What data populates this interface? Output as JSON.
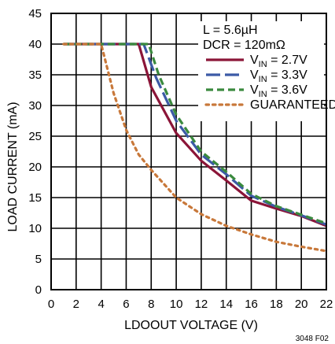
{
  "chart_data": {
    "type": "line",
    "xlabel": "LDOOUT VOLTAGE (V)",
    "ylabel": "LOAD CURRENT (mA)",
    "xlim": [
      0,
      22
    ],
    "ylim": [
      0,
      45
    ],
    "xticks": [
      0,
      2,
      4,
      6,
      8,
      10,
      12,
      14,
      16,
      18,
      20,
      22
    ],
    "yticks": [
      0,
      5,
      10,
      15,
      20,
      25,
      30,
      35,
      40,
      45
    ],
    "grid": true,
    "legend_position": "top-right",
    "annotations": [
      "L = 5.6µH",
      "DCR = 120mΩ"
    ],
    "figure_code": "3048 F02",
    "series": [
      {
        "name": "VIN = 2.7V",
        "name_main": "V",
        "name_sub": "IN",
        "name_rest": " = 2.7V",
        "color": "#8b1538",
        "dash": "solid",
        "points": [
          [
            1,
            40
          ],
          [
            7,
            40
          ],
          [
            8,
            33
          ],
          [
            10,
            25.5
          ],
          [
            12,
            21
          ],
          [
            14,
            17.8
          ],
          [
            16,
            14.5
          ],
          [
            18,
            13.2
          ],
          [
            20,
            12
          ],
          [
            22,
            10.4
          ]
        ]
      },
      {
        "name": "VIN = 3.3V",
        "name_main": "V",
        "name_sub": "IN",
        "name_rest": " = 3.3V",
        "color": "#3c5aa6",
        "dash": "long-dash",
        "points": [
          [
            1,
            40
          ],
          [
            7.4,
            40
          ],
          [
            8.4,
            34.5
          ],
          [
            10,
            27.5
          ],
          [
            12,
            22
          ],
          [
            14,
            18.8
          ],
          [
            16,
            15.3
          ],
          [
            18,
            13.5
          ],
          [
            20,
            12.1
          ],
          [
            22,
            10.6
          ]
        ]
      },
      {
        "name": "VIN = 3.6V",
        "name_main": "V",
        "name_sub": "IN",
        "name_rest": " = 3.6V",
        "color": "#3a8a3e",
        "dash": "dashed",
        "points": [
          [
            1,
            40
          ],
          [
            7.8,
            40
          ],
          [
            8.6,
            35
          ],
          [
            10,
            28.5
          ],
          [
            12,
            22.5
          ],
          [
            14,
            19.2
          ],
          [
            16,
            15.6
          ],
          [
            18,
            13.6
          ],
          [
            20,
            12.2
          ],
          [
            22,
            10.8
          ]
        ]
      },
      {
        "name": "GUARANTEED",
        "name_main": "GUARANTEED",
        "name_sub": "",
        "name_rest": "",
        "color": "#c8783a",
        "dash": "dotted",
        "points": [
          [
            1,
            40
          ],
          [
            4,
            40
          ],
          [
            5,
            32
          ],
          [
            6,
            26
          ],
          [
            7,
            22
          ],
          [
            8,
            19.5
          ],
          [
            10,
            15
          ],
          [
            12,
            12.3
          ],
          [
            14,
            10.4
          ],
          [
            16,
            9
          ],
          [
            18,
            7.8
          ],
          [
            20,
            7
          ],
          [
            22,
            6.3
          ]
        ]
      }
    ]
  }
}
